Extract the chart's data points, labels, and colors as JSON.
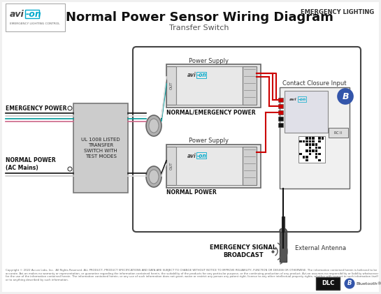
{
  "title": "Normal Power Sensor Wiring Diagram",
  "subtitle": "Transfer Switch",
  "emergency_lighting_text": "EMERGENCY LIGHTING",
  "bg_color": "#f0f0f0",
  "transfer_switch_label": "UL 1008 LISTED\nTRANSFER\nSWITCH WITH\nTEST MODES",
  "emergency_power_label": "EMERGENCY POWER",
  "normal_power_label": "NORMAL POWER\n(AC Mains)",
  "power_supply_label1": "Power Supply",
  "power_supply_label2": "Power Supply",
  "normal_emergency_label": "NORMAL/EMERGENCY POWER",
  "normal_power_out_label": "NORMAL POWER",
  "contact_closure_label": "Contact Closure Input",
  "emergency_signal_label": "EMERGENCY SIGNAL\nBROADCAST",
  "external_antenna_label": "External Antenna",
  "copyright_text": "Copyright © 2022 Avi-on Labs, Inc.  All Rights Reserved. ALL PRODUCT, PRODUCT SPECIFICATIONS AND DATA ARE SUBJECT TO CHANGE WITHOUT NOTICE TO IMPROVE RELIABILITY, FUNCTION OR DESIGN OR OTHERWISE. The information contained herein is believed to be accurate. Avi-on makes no warranty or representation, or guarantee regarding the information contained herein, the suitability of the products for any particular purpose, or the continuing production of any product. Avi-on assumes no responsibility or liability whatsoever for the use of the information contained herein. The information contained herein, or any use of such information does not grant, waive or restrict any person any patent right, license to any other intellectual property rights, whether with respect to such information itself or to anything described by such information.",
  "wire_black": "#111111",
  "wire_red": "#cc0000",
  "wire_white": "#e0e0e0",
  "wire_teal": "#009999",
  "wire_blue": "#3355aa",
  "wire_gray": "#777777"
}
